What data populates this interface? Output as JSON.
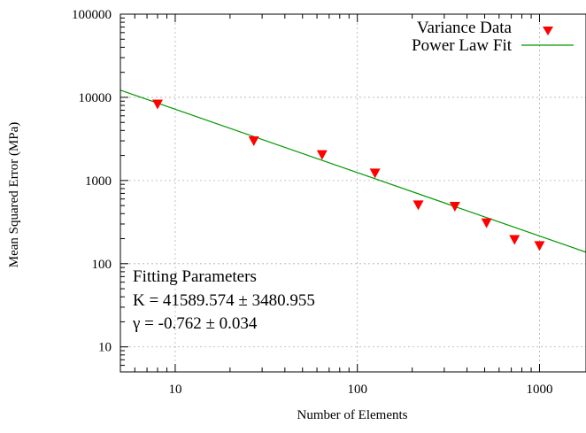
{
  "chart_data": {
    "type": "scatter",
    "xlabel": "Number of Elements",
    "ylabel": "Mean Squared Error (MPa)",
    "x_scale": "log",
    "y_scale": "log",
    "xlim": [
      5,
      1800
    ],
    "ylim": [
      5,
      100000
    ],
    "grid": true,
    "x_ticks": [
      10,
      100,
      1000
    ],
    "x_tick_labels": [
      "10",
      "100",
      "1000"
    ],
    "y_ticks": [
      10,
      100,
      1000,
      10000,
      100000
    ],
    "y_tick_labels": [
      "10",
      "100",
      "1000",
      "10000",
      "100000"
    ],
    "legend": {
      "placement": "top-right",
      "entries": [
        "Variance Data",
        "Power Law Fit"
      ]
    },
    "series": [
      {
        "name": "Variance Data",
        "kind": "scatter",
        "marker": "triangle-down",
        "color": "#ff0000",
        "points": [
          {
            "x": 8,
            "y": 8300
          },
          {
            "x": 27,
            "y": 3000
          },
          {
            "x": 64,
            "y": 2050
          },
          {
            "x": 125,
            "y": 1230
          },
          {
            "x": 216,
            "y": 510
          },
          {
            "x": 343,
            "y": 490
          },
          {
            "x": 512,
            "y": 310
          },
          {
            "x": 729,
            "y": 195
          },
          {
            "x": 1000,
            "y": 165
          }
        ]
      },
      {
        "name": "Power Law Fit",
        "kind": "line",
        "color": "#009900",
        "K": 41589.574,
        "gamma": -0.762
      }
    ],
    "annotation": {
      "title": "Fitting Parameters",
      "line1": "K = 41589.574 ± 3480.955",
      "line2": "γ = -0.762 ± 0.034"
    }
  }
}
